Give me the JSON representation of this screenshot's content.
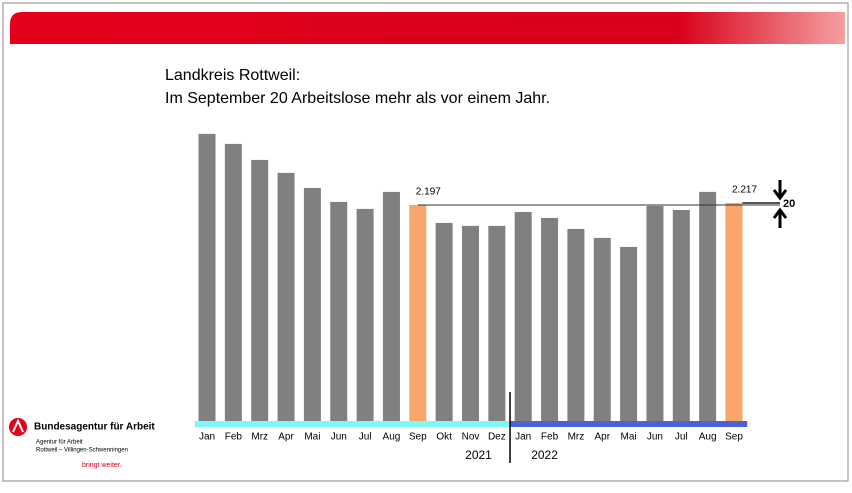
{
  "chart_data": {
    "type": "bar",
    "title": [
      "Landkreis Rottweil:",
      "Im September 20 Arbeitslose mehr als vor einem Jahr."
    ],
    "ylim": [
      0,
      3000
    ],
    "groups": [
      {
        "label": "2021",
        "color": "#80f8f8",
        "categories": [
          "Jan",
          "Feb",
          "Mrz",
          "Apr",
          "Mai",
          "Jun",
          "Jul",
          "Aug",
          "Sep",
          "Okt",
          "Nov",
          "Dez"
        ],
        "values": [
          2920,
          2818,
          2655,
          2523,
          2370,
          2228,
          2157,
          2330,
          2197,
          2014,
          1984,
          1984
        ],
        "value_labels": [
          null,
          null,
          null,
          null,
          null,
          null,
          null,
          null,
          "2.197",
          null,
          null,
          null
        ],
        "colors": [
          "#808080",
          "#808080",
          "#808080",
          "#808080",
          "#808080",
          "#808080",
          "#808080",
          "#808080",
          "#f9a66c",
          "#808080",
          "#808080",
          "#808080"
        ]
      },
      {
        "label": "2022",
        "color": "#4a64d8",
        "categories": [
          "Jan",
          "Feb",
          "Mrz",
          "Apr",
          "Mai",
          "Jun",
          "Jul",
          "Aug",
          "Sep"
        ],
        "values": [
          2126,
          2065,
          1953,
          1862,
          1770,
          2187,
          2146,
          2330,
          2217
        ],
        "value_labels": [
          null,
          null,
          null,
          null,
          null,
          null,
          null,
          null,
          "2.217"
        ],
        "colors": [
          "#808080",
          "#808080",
          "#808080",
          "#808080",
          "#808080",
          "#808080",
          "#808080",
          "#808080",
          "#f9a66c"
        ]
      }
    ],
    "difference_label": "20"
  },
  "logo": {
    "name": "Bundesagentur für Arbeit",
    "agency": "Agentur für Arbeit",
    "region": "Rottweil – Villingen-Schwenningen",
    "slogan": "bringt weiter."
  }
}
